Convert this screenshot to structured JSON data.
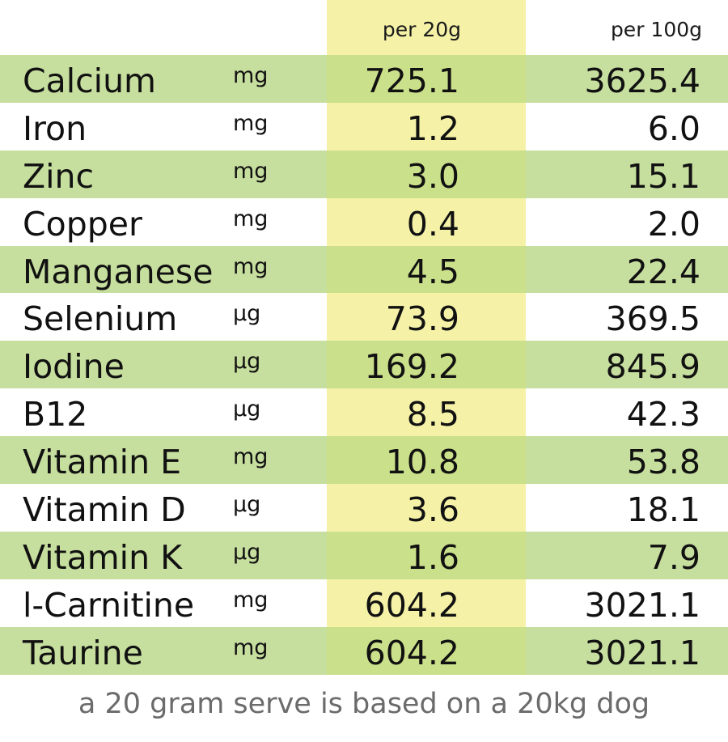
{
  "header": {
    "per_20g": "per 20g",
    "per_100g": "per 100g"
  },
  "rows": [
    {
      "name": "Calcium",
      "unit": "mg",
      "per_20g": "725.1",
      "per_100g": "3625.4"
    },
    {
      "name": "Iron",
      "unit": "mg",
      "per_20g": "1.2",
      "per_100g": "6.0"
    },
    {
      "name": "Zinc",
      "unit": "mg",
      "per_20g": "3.0",
      "per_100g": "15.1"
    },
    {
      "name": "Copper",
      "unit": "mg",
      "per_20g": "0.4",
      "per_100g": "2.0"
    },
    {
      "name": "Manganese",
      "unit": "mg",
      "per_20g": "4.5",
      "per_100g": "22.4"
    },
    {
      "name": "Selenium",
      "unit": "µg",
      "per_20g": "73.9",
      "per_100g": "369.5"
    },
    {
      "name": "Iodine",
      "unit": "µg",
      "per_20g": "169.2",
      "per_100g": "845.9"
    },
    {
      "name": "B12",
      "unit": "µg",
      "per_20g": "8.5",
      "per_100g": "42.3"
    },
    {
      "name": "Vitamin E",
      "unit": "mg",
      "per_20g": "10.8",
      "per_100g": "53.8"
    },
    {
      "name": "Vitamin D",
      "unit": "µg",
      "per_20g": "3.6",
      "per_100g": "18.1"
    },
    {
      "name": "Vitamin K",
      "unit": "µg",
      "per_20g": "1.6",
      "per_100g": "7.9"
    },
    {
      "name": "l-Carnitine",
      "unit": "mg",
      "per_20g": "604.2",
      "per_100g": "3021.1"
    },
    {
      "name": "Taurine",
      "unit": "mg",
      "per_20g": "604.2",
      "per_100g": "3021.1"
    }
  ],
  "footnote": "a 20 gram serve is based on a 20kg dog",
  "colors": {
    "row_shade": "#c6de9e",
    "highlight_column": "#f5f2a8",
    "highlight_on_shade": "#cbe08a",
    "footnote_text": "#6b6b6b"
  }
}
